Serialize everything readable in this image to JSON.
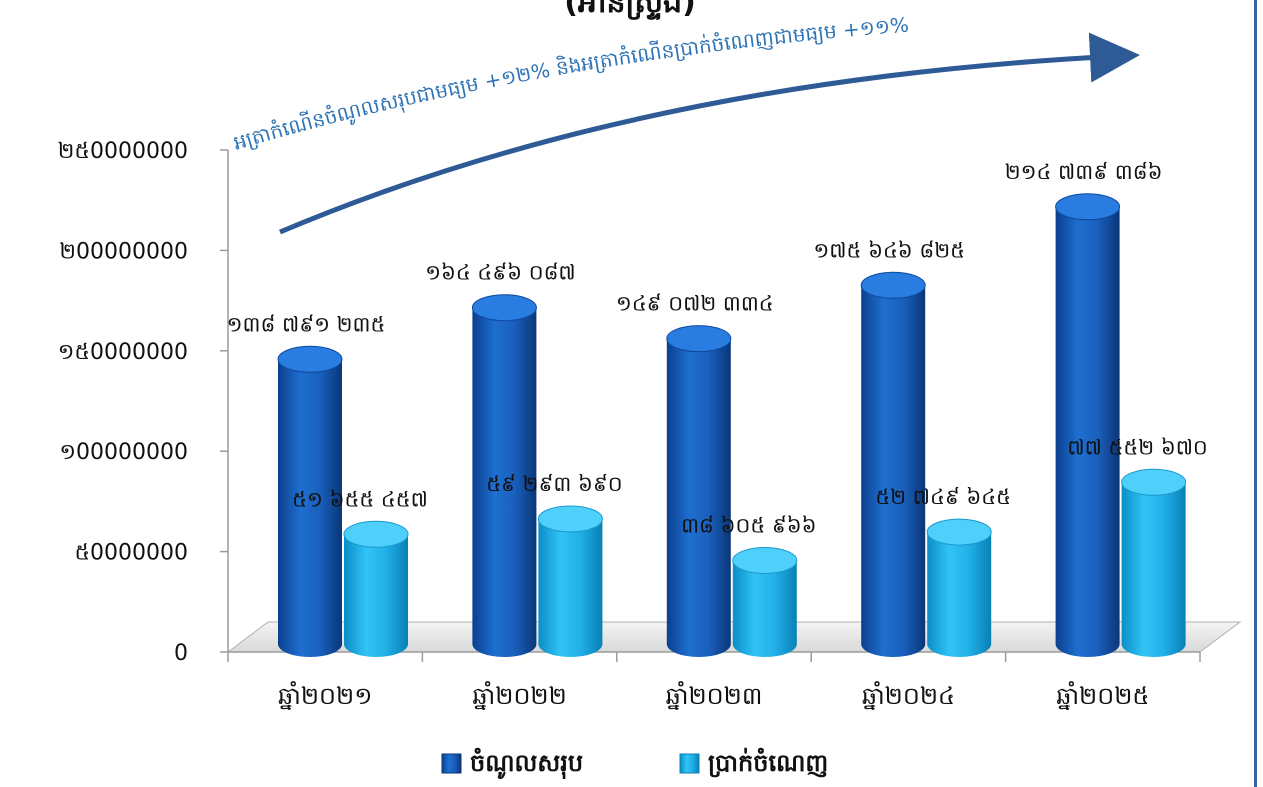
{
  "chart_data": {
    "type": "bar",
    "title_fragment": "(អានស្ទ្រីង)",
    "categories": [
      "ឆ្នាំ២០២១",
      "ឆ្នាំ២០២២",
      "ឆ្នាំ២០២៣",
      "ឆ្នាំ២០២៤",
      "ឆ្នាំ២០២៥"
    ],
    "series": [
      {
        "name": "ចំណូលសរុប",
        "values": [
          138791235,
          164496087,
          149072334,
          175646825,
          214739386
        ],
        "labels": [
          "១៣៨ ៧៩១ ២៣៥",
          "១៦៤ ៤៩៦ ០៨៧",
          "១៤៩ ០៧២ ៣៣៤",
          "១៧៥ ៦៤៦ ៨២៥",
          "២១៤ ៧៣៩ ៣៨៦"
        ],
        "color": "#1565c0"
      },
      {
        "name": "ប្រាក់ចំណេញ",
        "values": [
          51655457,
          59293690,
          38605966,
          52749645,
          77552670
        ],
        "labels": [
          "៥១ ៦៥៥ ៤៥៧",
          "៥៩ ២៩៣ ៦៩០",
          "៣៨ ៦០៥ ៩៦៦",
          "៥២ ៧៤៩ ៦៤៥",
          "៧៧ ៥៥២ ៦៧០"
        ],
        "color": "#1ea7e0"
      }
    ],
    "ylim": [
      0,
      250000000
    ],
    "yticks": [
      0,
      50000000,
      100000000,
      150000000,
      200000000,
      250000000
    ],
    "ytick_labels": [
      "0",
      "៥0000000",
      "១00000000",
      "១៥0000000",
      "២00000000",
      "២៥0000000"
    ],
    "annotation": "អត្រាកំណើនចំណូលសរុបជាមធ្យម +១២% និងអត្រាកំណើនប្រាក់ចំណេញជាមធ្យម +១១%",
    "grid": false,
    "legend": "bottom"
  }
}
